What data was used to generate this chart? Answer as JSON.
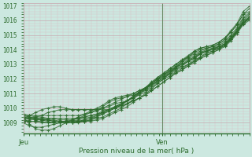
{
  "title": "",
  "xlabel": "Pression niveau de la mer( hPa )",
  "bg_color": "#cce8e0",
  "grid_color_minor": "#d4bfc0",
  "grid_color_major": "#c8b0b4",
  "line_color": "#2d6b2d",
  "tick_label_color": "#2d6b2d",
  "xlabel_color": "#2d6b2d",
  "spine_color": "#4d8b4d",
  "ylim": [
    1008.3,
    1017.2
  ],
  "yticks": [
    1009,
    1010,
    1011,
    1012,
    1013,
    1014,
    1015,
    1016,
    1017
  ],
  "xtick_labels": [
    "Jeu",
    "Ven"
  ],
  "xtick_positions": [
    0.0,
    0.615
  ],
  "vline_x": 0.615,
  "xlim": [
    0.0,
    1.0
  ],
  "series": [
    [
      1009.1,
      1009.1,
      1009.1,
      1009.1,
      1009.0,
      1009.0,
      1009.0,
      1009.0,
      1009.0,
      1009.1,
      1009.1,
      1009.2,
      1009.3,
      1009.4,
      1009.6,
      1009.8,
      1010.0,
      1010.3,
      1010.6,
      1011.0,
      1011.3,
      1011.7,
      1012.1,
      1012.4,
      1012.7,
      1013.0,
      1013.3,
      1013.6,
      1013.9,
      1014.1,
      1014.2,
      1014.3,
      1014.5,
      1014.8,
      1015.2,
      1015.7,
      1016.4,
      1016.8
    ],
    [
      1009.3,
      1009.3,
      1009.2,
      1009.2,
      1009.1,
      1009.0,
      1009.0,
      1009.0,
      1009.0,
      1009.1,
      1009.1,
      1009.2,
      1009.4,
      1009.6,
      1009.8,
      1010.0,
      1010.2,
      1010.5,
      1010.8,
      1011.1,
      1011.4,
      1011.8,
      1012.1,
      1012.4,
      1012.7,
      1013.0,
      1013.3,
      1013.5,
      1013.8,
      1014.0,
      1014.1,
      1014.2,
      1014.4,
      1014.7,
      1015.2,
      1015.7,
      1016.4,
      1016.6
    ],
    [
      1009.4,
      1009.3,
      1009.2,
      1009.2,
      1009.2,
      1009.1,
      1009.1,
      1009.1,
      1009.0,
      1009.1,
      1009.2,
      1009.3,
      1009.4,
      1009.6,
      1009.8,
      1010.0,
      1010.2,
      1010.5,
      1010.8,
      1011.1,
      1011.4,
      1011.7,
      1012.0,
      1012.3,
      1012.6,
      1012.9,
      1013.2,
      1013.5,
      1013.7,
      1013.9,
      1014.1,
      1014.2,
      1014.4,
      1014.6,
      1015.0,
      1015.5,
      1016.2,
      1016.5
    ],
    [
      1009.5,
      1009.4,
      1009.3,
      1009.2,
      1009.2,
      1009.1,
      1009.1,
      1009.1,
      1009.1,
      1009.1,
      1009.2,
      1009.3,
      1009.5,
      1009.7,
      1009.9,
      1010.1,
      1010.3,
      1010.5,
      1010.8,
      1011.1,
      1011.4,
      1011.7,
      1012.0,
      1012.3,
      1012.6,
      1012.8,
      1013.1,
      1013.4,
      1013.6,
      1013.8,
      1014.0,
      1014.1,
      1014.3,
      1014.5,
      1014.9,
      1015.4,
      1016.1,
      1016.4
    ],
    [
      1009.4,
      1009.4,
      1009.3,
      1009.3,
      1009.2,
      1009.2,
      1009.1,
      1009.1,
      1009.1,
      1009.2,
      1009.3,
      1009.4,
      1009.5,
      1009.7,
      1009.9,
      1010.1,
      1010.3,
      1010.5,
      1010.8,
      1011.0,
      1011.3,
      1011.6,
      1011.9,
      1012.2,
      1012.5,
      1012.8,
      1013.0,
      1013.3,
      1013.5,
      1013.8,
      1013.9,
      1014.1,
      1014.2,
      1014.4,
      1014.8,
      1015.3,
      1016.0,
      1016.3
    ],
    [
      1009.6,
      1009.5,
      1009.4,
      1009.4,
      1009.3,
      1009.3,
      1009.2,
      1009.2,
      1009.2,
      1009.3,
      1009.4,
      1009.5,
      1009.6,
      1009.7,
      1009.9,
      1010.1,
      1010.3,
      1010.5,
      1010.7,
      1011.0,
      1011.2,
      1011.5,
      1011.8,
      1012.1,
      1012.4,
      1012.7,
      1012.9,
      1013.2,
      1013.4,
      1013.7,
      1013.9,
      1014.0,
      1014.2,
      1014.4,
      1014.8,
      1015.3,
      1015.9,
      1016.2
    ],
    [
      1009.5,
      1009.5,
      1009.5,
      1009.5,
      1009.5,
      1009.5,
      1009.5,
      1009.5,
      1009.5,
      1009.5,
      1009.6,
      1009.7,
      1009.8,
      1010.0,
      1010.2,
      1010.4,
      1010.6,
      1010.8,
      1011.0,
      1011.2,
      1011.4,
      1011.7,
      1012.0,
      1012.3,
      1012.5,
      1012.8,
      1013.0,
      1013.2,
      1013.5,
      1013.7,
      1013.9,
      1014.0,
      1014.2,
      1014.4,
      1014.8,
      1015.3,
      1015.9,
      1016.2
    ],
    [
      1009.2,
      1009.5,
      1009.7,
      1009.9,
      1010.0,
      1010.1,
      1010.1,
      1010.0,
      1009.9,
      1009.9,
      1009.9,
      1009.9,
      1009.9,
      1010.0,
      1010.1,
      1010.3,
      1010.4,
      1010.5,
      1010.7,
      1010.9,
      1011.1,
      1011.4,
      1011.7,
      1012.0,
      1012.2,
      1012.5,
      1012.7,
      1013.0,
      1013.2,
      1013.5,
      1013.7,
      1013.9,
      1014.1,
      1014.3,
      1014.7,
      1015.2,
      1015.8,
      1016.1
    ],
    [
      1009.1,
      1009.2,
      1009.3,
      1009.3,
      1009.3,
      1009.3,
      1009.3,
      1009.3,
      1009.3,
      1009.3,
      1009.4,
      1009.5,
      1009.6,
      1009.8,
      1009.9,
      1010.1,
      1010.2,
      1010.3,
      1010.5,
      1010.7,
      1010.9,
      1011.2,
      1011.5,
      1011.8,
      1012.1,
      1012.4,
      1012.6,
      1012.9,
      1013.2,
      1013.4,
      1013.6,
      1013.8,
      1014.0,
      1014.2,
      1014.6,
      1015.1,
      1015.7,
      1016.0
    ],
    [
      1009.0,
      1008.8,
      1008.7,
      1008.7,
      1008.8,
      1008.9,
      1009.0,
      1009.1,
      1009.2,
      1009.3,
      1009.5,
      1009.7,
      1009.9,
      1010.1,
      1010.4,
      1010.6,
      1010.7,
      1010.8,
      1010.9,
      1011.1,
      1011.3,
      1011.6,
      1011.9,
      1012.2,
      1012.4,
      1012.7,
      1012.9,
      1013.2,
      1013.4,
      1013.7,
      1013.9,
      1014.0,
      1014.1,
      1014.3,
      1014.7,
      1015.2,
      1015.8,
      1016.1
    ],
    [
      1009.4,
      1008.9,
      1008.6,
      1008.5,
      1008.5,
      1008.6,
      1008.8,
      1009.0,
      1009.2,
      1009.4,
      1009.6,
      1009.8,
      1010.0,
      1010.2,
      1010.5,
      1010.7,
      1010.8,
      1010.9,
      1011.0,
      1011.2,
      1011.4,
      1011.6,
      1011.8,
      1012.1,
      1012.3,
      1012.6,
      1012.8,
      1013.0,
      1013.3,
      1013.5,
      1013.8,
      1013.9,
      1014.1,
      1014.3,
      1014.7,
      1015.2,
      1015.8,
      1016.1
    ],
    [
      1009.2,
      1009.3,
      1009.4,
      1009.5,
      1009.7,
      1009.8,
      1009.9,
      1009.9,
      1009.9,
      1009.9,
      1009.9,
      1009.9,
      1009.9,
      1009.9,
      1009.9,
      1010.0,
      1010.1,
      1010.3,
      1010.5,
      1010.7,
      1010.9,
      1011.2,
      1011.5,
      1011.8,
      1012.1,
      1012.4,
      1012.6,
      1012.9,
      1013.1,
      1013.4,
      1013.6,
      1013.8,
      1014.0,
      1014.3,
      1014.7,
      1015.2,
      1015.8,
      1016.2
    ]
  ],
  "outlier_series": [
    [
      1009.1,
      1009.1,
      1009.1,
      1009.0,
      1009.0,
      1009.0,
      1009.0,
      1009.0,
      1009.0,
      1009.0,
      1009.1,
      1009.1,
      1009.2,
      1009.3,
      1009.5,
      1009.7,
      1009.9,
      1010.1,
      1010.4,
      1010.7,
      1011.0,
      1011.3,
      1011.7,
      1012.0,
      1012.4,
      1012.8,
      1013.2,
      1013.5,
      1013.9,
      1014.1,
      1014.2,
      1014.3,
      1014.5,
      1014.8,
      1015.3,
      1015.8,
      1016.6,
      1016.95
    ]
  ]
}
